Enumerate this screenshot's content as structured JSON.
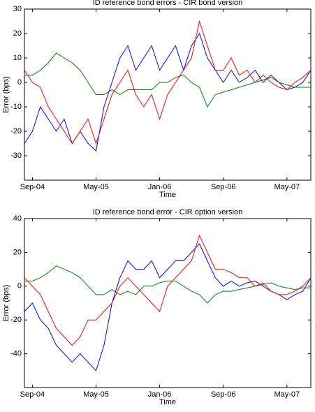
{
  "chart_data": [
    {
      "type": "line",
      "title": "ID reference bond errors - CIR bond version",
      "x_label": "Time",
      "y_label": "Error (bps)",
      "categories": [
        null,
        "Sep-04",
        null,
        null,
        null,
        null,
        null,
        null,
        null,
        "May-05",
        null,
        null,
        null,
        null,
        null,
        null,
        null,
        "Jan-06",
        null,
        null,
        null,
        null,
        null,
        null,
        null,
        "Sep-06",
        null,
        null,
        null,
        null,
        null,
        null,
        null,
        "May-07",
        null,
        null,
        null
      ],
      "ylim": [
        -40,
        30
      ],
      "yticks": [
        -30,
        -20,
        -10,
        0,
        10,
        20,
        30
      ],
      "series": [
        {
          "color": "#0000ff",
          "values": [
            -25,
            -20,
            -10,
            -15,
            -20,
            -15,
            -25,
            -20,
            -25,
            -28,
            -10,
            0,
            10,
            15,
            5,
            10,
            15,
            5,
            10,
            15,
            5,
            15,
            20,
            10,
            5,
            0,
            5,
            0,
            2,
            5,
            0,
            3,
            0,
            -3,
            -2,
            0,
            5
          ]
        },
        {
          "color": "#008000",
          "values": [
            3,
            3,
            5,
            8,
            12,
            10,
            8,
            5,
            0,
            -5,
            -5,
            -3,
            -5,
            -3,
            -3,
            -3,
            -3,
            0,
            0,
            2,
            3,
            0,
            -2,
            -10,
            -5,
            -4,
            -3,
            -2,
            -1,
            0,
            1,
            2,
            0,
            -1,
            -2,
            -2,
            -2
          ]
        },
        {
          "color": "#ff0000",
          "values": [
            5,
            0,
            -2,
            -10,
            -15,
            -20,
            -25,
            -20,
            -15,
            -25,
            -15,
            -5,
            0,
            5,
            -5,
            -10,
            -5,
            -15,
            -5,
            0,
            5,
            10,
            25,
            15,
            5,
            5,
            10,
            3,
            5,
            0,
            3,
            0,
            -2,
            -3,
            0,
            2,
            5
          ]
        }
      ]
    },
    {
      "type": "line",
      "title": "ID reference bond error - CIR option version",
      "x_label": "Time",
      "y_label": "Error (bps)",
      "categories": [
        null,
        "Sep-04",
        null,
        null,
        null,
        null,
        null,
        null,
        null,
        "May-05",
        null,
        null,
        null,
        null,
        null,
        null,
        null,
        "Jan-06",
        null,
        null,
        null,
        null,
        null,
        null,
        null,
        "Sep-06",
        null,
        null,
        null,
        null,
        null,
        null,
        null,
        "May-07",
        null,
        null,
        null
      ],
      "ylim": [
        -60,
        40
      ],
      "yticks": [
        -40,
        -20,
        0,
        20,
        40
      ],
      "series": [
        {
          "color": "#0000ff",
          "values": [
            -15,
            -10,
            -20,
            -25,
            -35,
            -40,
            -45,
            -40,
            -45,
            -50,
            -35,
            -10,
            5,
            15,
            10,
            10,
            15,
            5,
            10,
            15,
            15,
            20,
            25,
            15,
            5,
            0,
            3,
            0,
            2,
            3,
            0,
            -3,
            -5,
            -8,
            -5,
            -3,
            5
          ]
        },
        {
          "color": "#008000",
          "values": [
            3,
            3,
            5,
            8,
            12,
            10,
            8,
            5,
            0,
            -5,
            -5,
            -2,
            -5,
            -3,
            -5,
            0,
            0,
            2,
            3,
            3,
            0,
            -3,
            -5,
            -10,
            -5,
            -3,
            -3,
            -2,
            -1,
            0,
            1,
            2,
            0,
            -1,
            -2,
            -1,
            -1
          ]
        },
        {
          "color": "#ff0000",
          "values": [
            5,
            0,
            -5,
            -15,
            -25,
            -30,
            -35,
            -30,
            -20,
            -20,
            -15,
            -10,
            0,
            5,
            0,
            -5,
            -10,
            -15,
            0,
            5,
            10,
            15,
            30,
            20,
            10,
            10,
            8,
            5,
            5,
            0,
            2,
            -3,
            -5,
            -5,
            -3,
            0,
            5
          ]
        }
      ]
    }
  ]
}
